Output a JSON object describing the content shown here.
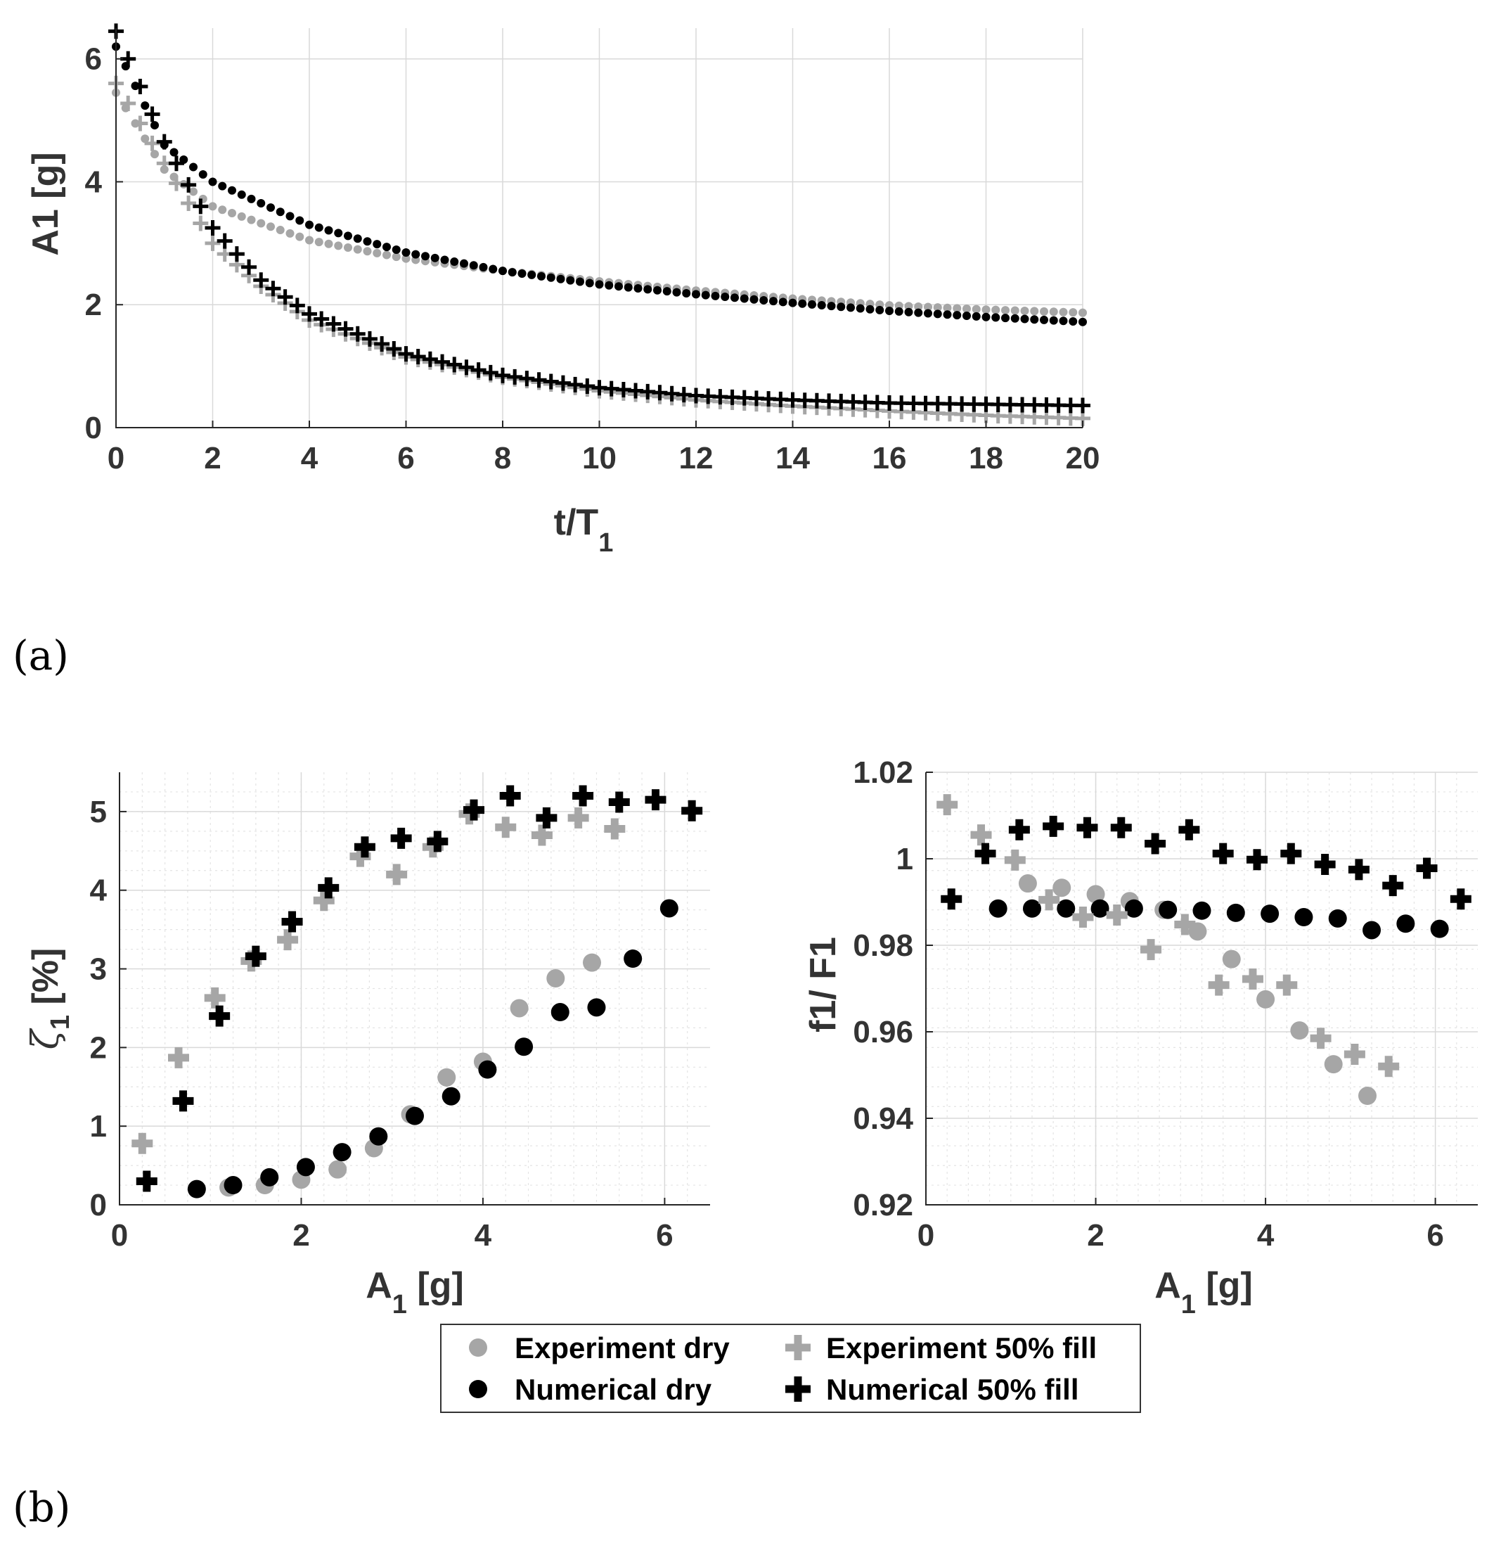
{
  "panel_labels": {
    "a": "(a)",
    "b": "(b)"
  },
  "colors": {
    "experiment": "#a6a6a6",
    "numerical": "#000000",
    "axis": "#262626",
    "text": "#333333"
  },
  "legend": {
    "items": [
      {
        "label": "Experiment dry",
        "marker": "circle",
        "color": "#a6a6a6"
      },
      {
        "label": "Experiment 50% fill",
        "marker": "plus",
        "color": "#a6a6a6"
      },
      {
        "label": "Numerical dry",
        "marker": "circle",
        "color": "#000000"
      },
      {
        "label": "Numerical 50% fill",
        "marker": "plus",
        "color": "#000000"
      }
    ]
  },
  "chart_data": [
    {
      "id": "a",
      "type": "scatter",
      "title": "",
      "xlabel_main": "t/T",
      "xlabel_sub": "1",
      "ylabel": "A1 [g]",
      "xlim": [
        0,
        20
      ],
      "ylim": [
        0,
        6.5
      ],
      "xticks": [
        0,
        2,
        4,
        6,
        8,
        10,
        12,
        14,
        16,
        18,
        20
      ],
      "yticks": [
        0,
        2,
        4,
        6
      ],
      "grid": "major",
      "series": [
        {
          "name": "Experiment dry",
          "marker": "circle",
          "color": "#a6a6a6",
          "curve": {
            "a0": 5.45,
            "n": 101,
            "x": [
              0,
              20
            ],
            "points": [
              [
                0,
                5.45
              ],
              [
                1,
                4.2
              ],
              [
                2,
                3.6
              ],
              [
                4,
                3.05
              ],
              [
                6,
                2.75
              ],
              [
                8,
                2.55
              ],
              [
                10,
                2.38
              ],
              [
                12,
                2.23
              ],
              [
                14,
                2.1
              ],
              [
                16,
                1.99
              ],
              [
                18,
                1.92
              ],
              [
                20,
                1.87
              ]
            ]
          }
        },
        {
          "name": "Numerical dry",
          "marker": "circle",
          "color": "#000000",
          "curve": {
            "n": 101,
            "x": [
              0,
              20
            ],
            "points": [
              [
                0,
                6.2
              ],
              [
                1,
                4.6
              ],
              [
                2,
                4.0
              ],
              [
                4,
                3.3
              ],
              [
                6,
                2.85
              ],
              [
                8,
                2.55
              ],
              [
                10,
                2.33
              ],
              [
                12,
                2.17
              ],
              [
                14,
                2.03
              ],
              [
                16,
                1.9
              ],
              [
                18,
                1.8
              ],
              [
                20,
                1.72
              ]
            ]
          }
        },
        {
          "name": "Experiment 50% fill",
          "marker": "plus",
          "color": "#a6a6a6",
          "curve": {
            "n": 81,
            "x": [
              0,
              20
            ],
            "points": [
              [
                0,
                5.6
              ],
              [
                1,
                4.3
              ],
              [
                2,
                3.0
              ],
              [
                3,
                2.3
              ],
              [
                4,
                1.75
              ],
              [
                6,
                1.15
              ],
              [
                8,
                0.82
              ],
              [
                10,
                0.6
              ],
              [
                12,
                0.45
              ],
              [
                14,
                0.35
              ],
              [
                16,
                0.27
              ],
              [
                18,
                0.2
              ],
              [
                20,
                0.15
              ]
            ]
          }
        },
        {
          "name": "Numerical 50% fill",
          "marker": "plus",
          "color": "#000000",
          "curve": {
            "n": 81,
            "x": [
              0,
              20
            ],
            "points": [
              [
                0,
                6.45
              ],
              [
                1,
                4.65
              ],
              [
                2,
                3.25
              ],
              [
                3,
                2.4
              ],
              [
                4,
                1.85
              ],
              [
                6,
                1.2
              ],
              [
                8,
                0.85
              ],
              [
                10,
                0.65
              ],
              [
                12,
                0.52
              ],
              [
                14,
                0.45
              ],
              [
                16,
                0.4
              ],
              [
                18,
                0.38
              ],
              [
                20,
                0.36
              ]
            ]
          }
        }
      ]
    },
    {
      "id": "b-left",
      "type": "scatter",
      "title": "",
      "xlabel_main": "A",
      "xlabel_sub": "1",
      "xlabel_suffix": " [g]",
      "ylabel_main": "ζ",
      "ylabel_sub": "1",
      "ylabel_suffix": " [%]",
      "xlim": [
        0,
        6.5
      ],
      "ylim": [
        0,
        5.5
      ],
      "xticks": [
        0,
        2,
        4,
        6
      ],
      "yticks": [
        0,
        1,
        2,
        3,
        4,
        5
      ],
      "grid": "minor",
      "series": [
        {
          "name": "Experiment dry",
          "marker": "circle",
          "color": "#a6a6a6",
          "points": [
            [
              1.2,
              0.22
            ],
            [
              1.6,
              0.25
            ],
            [
              2.0,
              0.32
            ],
            [
              2.4,
              0.45
            ],
            [
              2.8,
              0.72
            ],
            [
              3.2,
              1.15
            ],
            [
              3.6,
              1.62
            ],
            [
              4.0,
              1.82
            ],
            [
              4.4,
              2.5
            ],
            [
              4.8,
              2.88
            ],
            [
              5.2,
              3.08
            ]
          ]
        },
        {
          "name": "Numerical dry",
          "marker": "circle",
          "color": "#000000",
          "points": [
            [
              0.85,
              0.2
            ],
            [
              1.25,
              0.25
            ],
            [
              1.65,
              0.35
            ],
            [
              2.05,
              0.48
            ],
            [
              2.45,
              0.67
            ],
            [
              2.85,
              0.87
            ],
            [
              3.25,
              1.13
            ],
            [
              3.65,
              1.38
            ],
            [
              4.05,
              1.72
            ],
            [
              4.45,
              2.01
            ],
            [
              4.85,
              2.45
            ],
            [
              5.25,
              2.51
            ],
            [
              5.65,
              3.13
            ],
            [
              6.05,
              3.77
            ]
          ]
        },
        {
          "name": "Experiment 50% fill",
          "marker": "plus",
          "color": "#a6a6a6",
          "points": [
            [
              0.25,
              0.78
            ],
            [
              0.65,
              1.87
            ],
            [
              1.05,
              2.63
            ],
            [
              1.45,
              3.1
            ],
            [
              1.85,
              3.37
            ],
            [
              2.25,
              3.87
            ],
            [
              2.65,
              4.43
            ],
            [
              3.05,
              4.2
            ],
            [
              3.45,
              4.55
            ],
            [
              3.85,
              4.97
            ],
            [
              4.25,
              4.8
            ],
            [
              4.65,
              4.7
            ],
            [
              5.05,
              4.92
            ],
            [
              5.45,
              4.78
            ]
          ]
        },
        {
          "name": "Numerical 50% fill",
          "marker": "plus",
          "color": "#000000",
          "points": [
            [
              0.3,
              0.3
            ],
            [
              0.7,
              1.32
            ],
            [
              1.1,
              2.4
            ],
            [
              1.5,
              3.16
            ],
            [
              1.9,
              3.6
            ],
            [
              2.3,
              4.03
            ],
            [
              2.7,
              4.55
            ],
            [
              3.1,
              4.66
            ],
            [
              3.5,
              4.62
            ],
            [
              3.9,
              5.02
            ],
            [
              4.3,
              5.2
            ],
            [
              4.7,
              4.92
            ],
            [
              5.1,
              5.2
            ],
            [
              5.5,
              5.12
            ],
            [
              5.9,
              5.15
            ],
            [
              6.3,
              5.01
            ]
          ]
        }
      ]
    },
    {
      "id": "b-right",
      "type": "scatter",
      "title": "",
      "xlabel_main": "A",
      "xlabel_sub": "1",
      "xlabel_suffix": " [g]",
      "ylabel": "f1/ F1",
      "xlim": [
        0,
        6.5
      ],
      "ylim": [
        0.92,
        1.02
      ],
      "xticks": [
        0,
        2,
        4,
        6
      ],
      "yticks": [
        0.92,
        0.94,
        0.96,
        0.98,
        1,
        1.02
      ],
      "ytick_labels": [
        "0.92",
        "0.94",
        "0.96",
        "0.98",
        "1",
        "1.02"
      ],
      "grid": "minor",
      "series": [
        {
          "name": "Experiment dry",
          "marker": "circle",
          "color": "#a6a6a6",
          "points": [
            [
              1.2,
              0.9943
            ],
            [
              1.6,
              0.9933
            ],
            [
              2.0,
              0.9918
            ],
            [
              2.4,
              0.9902
            ],
            [
              2.8,
              0.9882
            ],
            [
              3.2,
              0.9832
            ],
            [
              3.6,
              0.9768
            ],
            [
              4.0,
              0.9675
            ],
            [
              4.4,
              0.9603
            ],
            [
              4.8,
              0.9525
            ],
            [
              5.2,
              0.9452
            ]
          ]
        },
        {
          "name": "Numerical dry",
          "marker": "circle",
          "color": "#000000",
          "points": [
            [
              0.85,
              0.9885
            ],
            [
              1.25,
              0.9885
            ],
            [
              1.65,
              0.9885
            ],
            [
              2.05,
              0.9885
            ],
            [
              2.45,
              0.9885
            ],
            [
              2.85,
              0.9882
            ],
            [
              3.25,
              0.988
            ],
            [
              3.65,
              0.9875
            ],
            [
              4.05,
              0.9873
            ],
            [
              4.45,
              0.9865
            ],
            [
              4.85,
              0.9862
            ],
            [
              5.25,
              0.9835
            ],
            [
              5.65,
              0.985
            ],
            [
              6.05,
              0.9838
            ]
          ]
        },
        {
          "name": "Experiment 50% fill",
          "marker": "plus",
          "color": "#a6a6a6",
          "points": [
            [
              0.25,
              1.0125
            ],
            [
              0.65,
              1.0055
            ],
            [
              1.05,
              0.9997
            ],
            [
              1.45,
              0.9905
            ],
            [
              1.85,
              0.9865
            ],
            [
              2.25,
              0.987
            ],
            [
              2.65,
              0.979
            ],
            [
              3.05,
              0.9848
            ],
            [
              3.45,
              0.9708
            ],
            [
              3.85,
              0.9722
            ],
            [
              4.25,
              0.9708
            ],
            [
              4.65,
              0.9585
            ],
            [
              5.05,
              0.9548
            ],
            [
              5.45,
              0.952
            ]
          ]
        },
        {
          "name": "Numerical 50% fill",
          "marker": "plus",
          "color": "#000000",
          "points": [
            [
              0.3,
              0.9907
            ],
            [
              0.7,
              1.0012
            ],
            [
              1.1,
              1.0067
            ],
            [
              1.5,
              1.0075
            ],
            [
              1.9,
              1.0072
            ],
            [
              2.3,
              1.0072
            ],
            [
              2.7,
              1.0035
            ],
            [
              3.1,
              1.0067
            ],
            [
              3.5,
              1.0012
            ],
            [
              3.9,
              0.9998
            ],
            [
              4.3,
              1.0012
            ],
            [
              4.7,
              0.9987
            ],
            [
              5.1,
              0.9975
            ],
            [
              5.5,
              0.9938
            ],
            [
              5.9,
              0.9978
            ],
            [
              6.3,
              0.9907
            ]
          ]
        }
      ]
    }
  ]
}
